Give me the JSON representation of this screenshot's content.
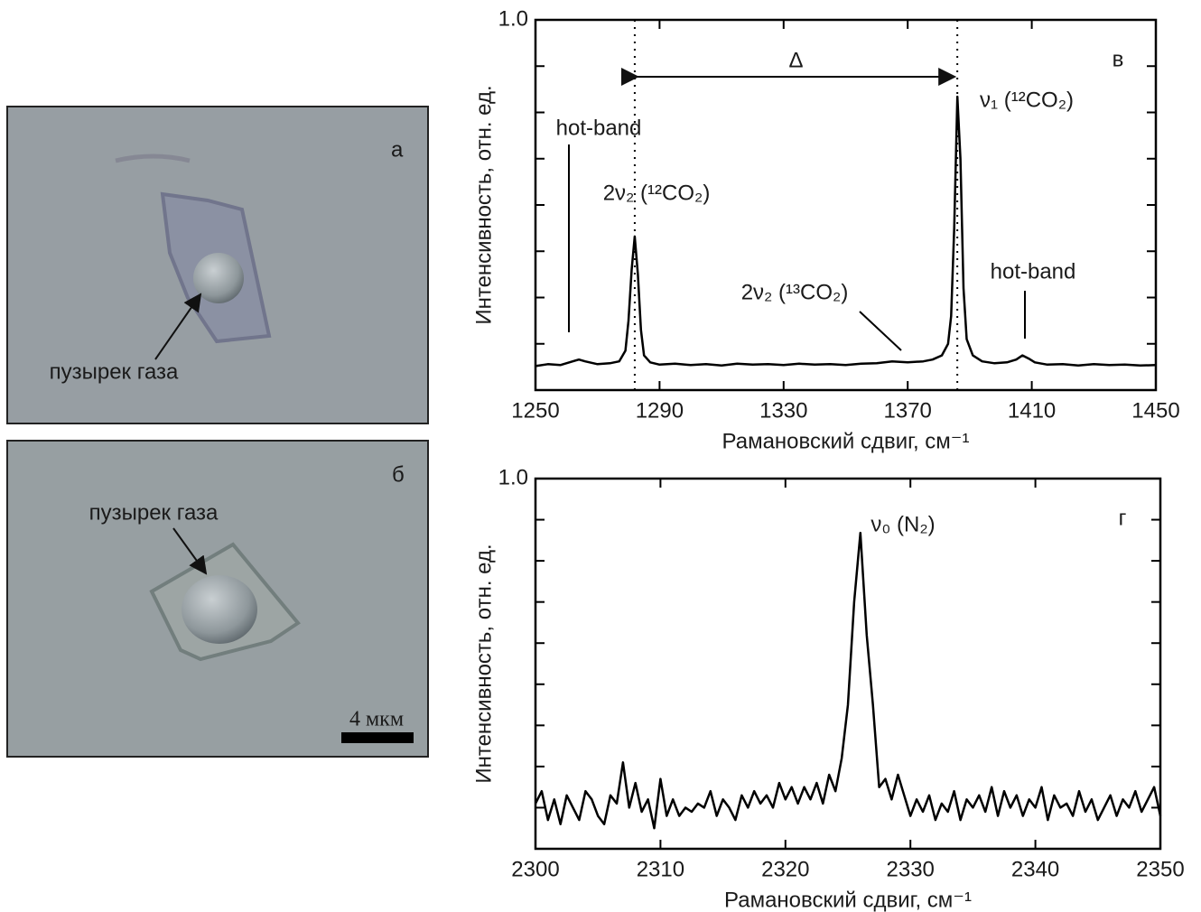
{
  "photos": [
    {
      "label": "а",
      "caption": "пузырек газа"
    },
    {
      "label": "б",
      "caption": "пузырек газа",
      "scale_bar": "4 мкм"
    }
  ],
  "chart_data": [
    {
      "type": "line",
      "panel": "в",
      "x_label": "Рамановский сдвиг, см⁻¹",
      "y_label": "Интенсивность, отн. ед.",
      "xlim": [
        1250,
        1450
      ],
      "xticks": [
        1250,
        1290,
        1330,
        1370,
        1410,
        1450
      ],
      "ylim": [
        0.2,
        1.0
      ],
      "yticks": [
        {
          "value": 1.0,
          "label": "1.0"
        }
      ],
      "yminorticks": [
        0.3,
        0.4,
        0.5,
        0.6,
        0.7,
        0.8,
        0.9
      ],
      "vlines": [
        1282,
        1386
      ],
      "interval_label": "Δ",
      "annotations": [
        "hot-band",
        "2ν₂ (¹²CO₂)",
        "2ν₂ (¹³CO₂)",
        "ν₁ (¹²CO₂)",
        "hot-band"
      ],
      "color": "#000000",
      "x": [
        1250,
        1254,
        1258,
        1262,
        1264,
        1266,
        1270,
        1274,
        1277,
        1279,
        1280,
        1281,
        1282,
        1283,
        1284,
        1285,
        1287,
        1290,
        1295,
        1300,
        1305,
        1310,
        1315,
        1320,
        1325,
        1330,
        1335,
        1340,
        1345,
        1350,
        1355,
        1360,
        1365,
        1370,
        1375,
        1378,
        1381,
        1383,
        1384,
        1385,
        1386,
        1387,
        1388,
        1389,
        1391,
        1394,
        1398,
        1402,
        1405,
        1407,
        1409,
        1411,
        1415,
        1420,
        1425,
        1430,
        1435,
        1440,
        1445,
        1450
      ],
      "values": [
        0.252,
        0.256,
        0.254,
        0.262,
        0.266,
        0.262,
        0.256,
        0.258,
        0.262,
        0.285,
        0.35,
        0.46,
        0.532,
        0.45,
        0.33,
        0.275,
        0.26,
        0.255,
        0.257,
        0.254,
        0.256,
        0.253,
        0.257,
        0.255,
        0.256,
        0.254,
        0.257,
        0.255,
        0.256,
        0.254,
        0.257,
        0.258,
        0.262,
        0.26,
        0.262,
        0.266,
        0.275,
        0.3,
        0.36,
        0.55,
        0.834,
        0.7,
        0.42,
        0.31,
        0.275,
        0.262,
        0.258,
        0.26,
        0.266,
        0.275,
        0.268,
        0.26,
        0.255,
        0.256,
        0.253,
        0.256,
        0.254,
        0.255,
        0.253,
        0.254
      ]
    },
    {
      "type": "line",
      "panel": "г",
      "x_label": "Рамановский сдвиг, см⁻¹",
      "y_label": "Интенсивность, отн. ед.",
      "xlim": [
        2300,
        2350
      ],
      "xticks": [
        2300,
        2310,
        2320,
        2330,
        2340,
        2350
      ],
      "ylim": [
        0.1,
        1.0
      ],
      "yticks": [
        {
          "value": 1.0,
          "label": "1.0"
        }
      ],
      "yminorticks": [
        0.2,
        0.3,
        0.4,
        0.5,
        0.6,
        0.7,
        0.8,
        0.9
      ],
      "annotations": [
        "ν₀ (N₂)"
      ],
      "color": "#000000",
      "x": [
        2300,
        2300.5,
        2301,
        2301.5,
        2302,
        2302.5,
        2303,
        2303.5,
        2304,
        2304.5,
        2305,
        2305.5,
        2306,
        2306.5,
        2307,
        2307.5,
        2308,
        2308.5,
        2309,
        2309.5,
        2310,
        2310.5,
        2311,
        2311.5,
        2312,
        2312.5,
        2313,
        2313.5,
        2314,
        2314.5,
        2315,
        2315.5,
        2316,
        2316.5,
        2317,
        2317.5,
        2318,
        2318.5,
        2319,
        2319.5,
        2320,
        2320.5,
        2321,
        2321.5,
        2322,
        2322.5,
        2323,
        2323.5,
        2324,
        2324.5,
        2325,
        2325.5,
        2326,
        2326.5,
        2327,
        2327.5,
        2328,
        2328.5,
        2329,
        2329.5,
        2330,
        2330.5,
        2331,
        2331.5,
        2332,
        2332.5,
        2333,
        2333.5,
        2334,
        2334.5,
        2335,
        2335.5,
        2336,
        2336.5,
        2337,
        2337.5,
        2338,
        2338.5,
        2339,
        2339.5,
        2340,
        2340.5,
        2341,
        2341.5,
        2342,
        2342.5,
        2343,
        2343.5,
        2344,
        2344.5,
        2345,
        2345.5,
        2346,
        2346.5,
        2347,
        2347.5,
        2348,
        2348.5,
        2349,
        2349.5,
        2350
      ],
      "values": [
        0.21,
        0.24,
        0.17,
        0.22,
        0.16,
        0.23,
        0.2,
        0.17,
        0.24,
        0.22,
        0.18,
        0.16,
        0.23,
        0.21,
        0.31,
        0.2,
        0.26,
        0.19,
        0.22,
        0.15,
        0.27,
        0.18,
        0.22,
        0.18,
        0.2,
        0.19,
        0.21,
        0.2,
        0.24,
        0.18,
        0.22,
        0.2,
        0.17,
        0.23,
        0.2,
        0.24,
        0.21,
        0.23,
        0.2,
        0.26,
        0.22,
        0.25,
        0.21,
        0.25,
        0.22,
        0.26,
        0.21,
        0.28,
        0.24,
        0.32,
        0.45,
        0.7,
        0.868,
        0.62,
        0.45,
        0.25,
        0.27,
        0.22,
        0.28,
        0.23,
        0.18,
        0.22,
        0.19,
        0.23,
        0.17,
        0.21,
        0.19,
        0.24,
        0.17,
        0.22,
        0.2,
        0.23,
        0.19,
        0.25,
        0.18,
        0.24,
        0.2,
        0.23,
        0.18,
        0.22,
        0.2,
        0.25,
        0.17,
        0.23,
        0.2,
        0.21,
        0.18,
        0.24,
        0.19,
        0.22,
        0.17,
        0.2,
        0.23,
        0.18,
        0.22,
        0.2,
        0.24,
        0.19,
        0.22,
        0.25,
        0.18
      ]
    }
  ]
}
